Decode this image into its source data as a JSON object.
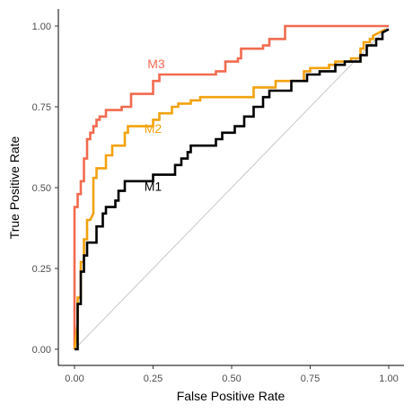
{
  "chart_data": {
    "type": "line",
    "title": "",
    "xlabel": "False Positive Rate",
    "ylabel": "True Positive Rate",
    "xlim": [
      0,
      1
    ],
    "ylim": [
      0,
      1
    ],
    "x_ticks": [
      0,
      0.25,
      0.5,
      0.75,
      1
    ],
    "x_tick_labels": [
      "0.00",
      "0.25",
      "0.50",
      "0.75",
      "1.00"
    ],
    "y_ticks": [
      0,
      0.25,
      0.5,
      0.75,
      1
    ],
    "y_tick_labels": [
      "0.00",
      "0.25",
      "0.50",
      "0.75",
      "1.00"
    ],
    "grid": false,
    "legend": "none (series labeled directly on plot)",
    "diagonal_reference": {
      "x": [
        0,
        1
      ],
      "y": [
        0,
        1
      ],
      "color": "#c8c8c8"
    },
    "series": [
      {
        "name": "M3",
        "color": "#f26a4f",
        "label_at": [
          0.26,
          0.87
        ],
        "x": [
          0,
          0,
          0.01,
          0.01,
          0.02,
          0.02,
          0.03,
          0.03,
          0.04,
          0.04,
          0.05,
          0.05,
          0.06,
          0.06,
          0.07,
          0.07,
          0.08,
          0.08,
          0.1,
          0.1,
          0.15,
          0.15,
          0.18,
          0.18,
          0.18,
          0.18,
          0.25,
          0.25,
          0.27,
          0.27,
          0.45,
          0.45,
          0.48,
          0.48,
          0.52,
          0.52,
          0.53,
          0.53,
          0.6,
          0.6,
          0.62,
          0.62,
          0.67,
          0.67,
          0.98,
          1.0
        ],
        "y": [
          0,
          0.44,
          0.44,
          0.48,
          0.48,
          0.52,
          0.52,
          0.59,
          0.59,
          0.65,
          0.65,
          0.67,
          0.67,
          0.69,
          0.69,
          0.71,
          0.71,
          0.72,
          0.72,
          0.74,
          0.74,
          0.75,
          0.75,
          0.78,
          0.78,
          0.79,
          0.79,
          0.83,
          0.83,
          0.85,
          0.85,
          0.86,
          0.86,
          0.89,
          0.89,
          0.9,
          0.9,
          0.93,
          0.93,
          0.94,
          0.94,
          0.96,
          0.96,
          1.0,
          1.0,
          1.0
        ]
      },
      {
        "name": "M2",
        "color": "#f2a20c",
        "label_at": [
          0.25,
          0.67
        ],
        "x": [
          0,
          0.01,
          0.01,
          0.02,
          0.02,
          0.03,
          0.03,
          0.04,
          0.04,
          0.05,
          0.06,
          0.06,
          0.07,
          0.07,
          0.1,
          0.1,
          0.12,
          0.12,
          0.16,
          0.16,
          0.17,
          0.17,
          0.25,
          0.25,
          0.27,
          0.27,
          0.31,
          0.31,
          0.33,
          0.33,
          0.37,
          0.37,
          0.4,
          0.4,
          0.57,
          0.57,
          0.64,
          0.64,
          0.73,
          0.73,
          0.75,
          0.75,
          0.81,
          0.81,
          0.83,
          0.83,
          0.88,
          0.88,
          0.91,
          0.91,
          0.92,
          0.92,
          0.94,
          0.94,
          0.95,
          0.95,
          0.99
        ],
        "y": [
          0,
          0.08,
          0.16,
          0.16,
          0.27,
          0.27,
          0.34,
          0.34,
          0.4,
          0.4,
          0.42,
          0.53,
          0.53,
          0.56,
          0.56,
          0.6,
          0.6,
          0.63,
          0.63,
          0.67,
          0.67,
          0.69,
          0.69,
          0.71,
          0.71,
          0.73,
          0.73,
          0.75,
          0.75,
          0.76,
          0.76,
          0.77,
          0.77,
          0.78,
          0.78,
          0.81,
          0.81,
          0.83,
          0.83,
          0.86,
          0.86,
          0.87,
          0.87,
          0.88,
          0.88,
          0.89,
          0.89,
          0.9,
          0.9,
          0.93,
          0.93,
          0.95,
          0.95,
          0.96,
          0.96,
          0.97,
          0.99
        ]
      },
      {
        "name": "M1",
        "color": "#000000",
        "label_at": [
          0.25,
          0.49
        ],
        "x": [
          0,
          0.01,
          0.01,
          0.02,
          0.02,
          0.03,
          0.03,
          0.04,
          0.04,
          0.07,
          0.07,
          0.09,
          0.09,
          0.1,
          0.1,
          0.13,
          0.13,
          0.14,
          0.14,
          0.16,
          0.16,
          0.25,
          0.25,
          0.32,
          0.32,
          0.34,
          0.34,
          0.36,
          0.36,
          0.37,
          0.37,
          0.45,
          0.45,
          0.47,
          0.47,
          0.51,
          0.51,
          0.54,
          0.54,
          0.57,
          0.57,
          0.6,
          0.6,
          0.62,
          0.62,
          0.69,
          0.69,
          0.74,
          0.74,
          0.78,
          0.78,
          0.83,
          0.83,
          0.86,
          0.86,
          0.91,
          0.91,
          0.93,
          0.93,
          0.96,
          0.96,
          0.98,
          0.98,
          1.0
        ],
        "y": [
          0,
          0,
          0.14,
          0.14,
          0.24,
          0.24,
          0.29,
          0.29,
          0.33,
          0.33,
          0.38,
          0.38,
          0.42,
          0.42,
          0.44,
          0.44,
          0.46,
          0.46,
          0.49,
          0.49,
          0.52,
          0.52,
          0.54,
          0.54,
          0.57,
          0.57,
          0.59,
          0.59,
          0.61,
          0.61,
          0.63,
          0.63,
          0.65,
          0.65,
          0.67,
          0.67,
          0.69,
          0.69,
          0.72,
          0.72,
          0.75,
          0.75,
          0.78,
          0.78,
          0.8,
          0.8,
          0.83,
          0.83,
          0.85,
          0.85,
          0.86,
          0.86,
          0.88,
          0.88,
          0.89,
          0.89,
          0.91,
          0.91,
          0.94,
          0.94,
          0.96,
          0.96,
          0.98,
          0.99
        ]
      }
    ]
  }
}
